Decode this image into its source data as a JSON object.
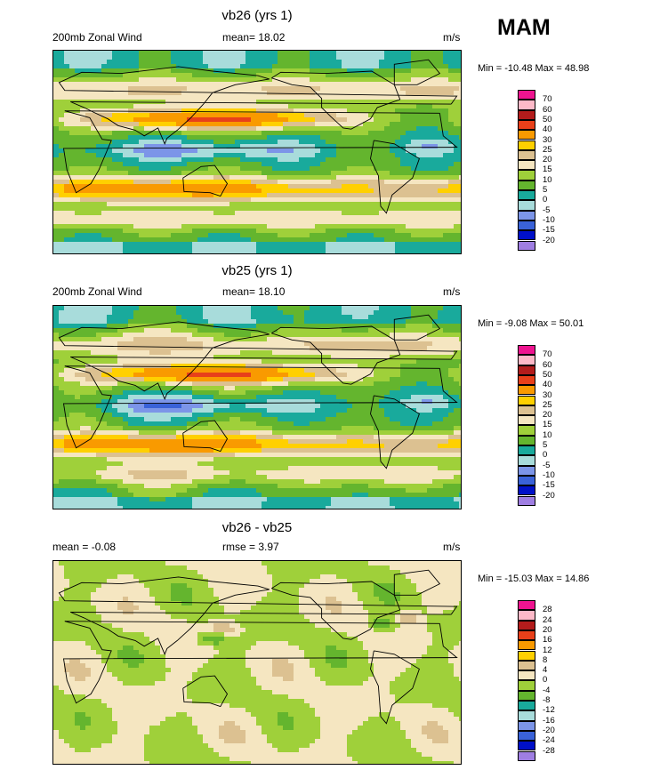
{
  "season": "MAM",
  "panels": [
    {
      "title": "vb26 (yrs 1)",
      "left_label": "200mb Zonal Wind",
      "center_label": "mean=  18.02",
      "units": "m/s",
      "minmax": "Min = -10.48 Max =  48.98",
      "colorbar": {
        "labels": [
          "70",
          "60",
          "50",
          "40",
          "30",
          "25",
          "20",
          "15",
          "10",
          "5",
          "0",
          "-5",
          "-10",
          "-15",
          "-20"
        ],
        "colors": [
          "#ee1490",
          "#fdb9c8",
          "#b31c1c",
          "#e8401a",
          "#f99a00",
          "#ffd000",
          "#dcc191",
          "#f5e6c1",
          "#9fd03a",
          "#64b52e",
          "#19aa9c",
          "#a8dcdb",
          "#7c95e8",
          "#3a62d8",
          "#0010c8",
          "#9f7ee2"
        ]
      },
      "map_fields": {
        "kind": "zonal-wind",
        "variant": 0
      }
    },
    {
      "title": "vb25 (yrs 1)",
      "left_label": "200mb Zonal Wind",
      "center_label": "mean=  18.10",
      "units": "m/s",
      "minmax": "Min = -9.08 Max =  50.01",
      "colorbar": {
        "labels": [
          "70",
          "60",
          "50",
          "40",
          "30",
          "25",
          "20",
          "15",
          "10",
          "5",
          "0",
          "-5",
          "-10",
          "-15",
          "-20"
        ],
        "colors": [
          "#ee1490",
          "#fdb9c8",
          "#b31c1c",
          "#e8401a",
          "#f99a00",
          "#ffd000",
          "#dcc191",
          "#f5e6c1",
          "#9fd03a",
          "#64b52e",
          "#19aa9c",
          "#a8dcdb",
          "#7c95e8",
          "#3a62d8",
          "#0010c8",
          "#9f7ee2"
        ]
      },
      "map_fields": {
        "kind": "zonal-wind",
        "variant": 1
      }
    },
    {
      "title": "vb26 - vb25",
      "left_label": "mean =  -0.08",
      "center_label": "rmse =   3.97",
      "units": "m/s",
      "minmax": "Min = -15.03 Max =  14.86",
      "colorbar": {
        "labels": [
          "28",
          "24",
          "20",
          "16",
          "12",
          "8",
          "4",
          "0",
          "-4",
          "-8",
          "-12",
          "-16",
          "-20",
          "-24",
          "-28"
        ],
        "colors": [
          "#ee1490",
          "#fdb9c8",
          "#b31c1c",
          "#e8401a",
          "#f99a00",
          "#ffd000",
          "#dcc191",
          "#f5e6c1",
          "#9fd03a",
          "#64b52e",
          "#19aa9c",
          "#a8dcdb",
          "#7c95e8",
          "#3a62d8",
          "#0010c8",
          "#9f7ee2"
        ]
      },
      "map_fields": {
        "kind": "difference",
        "variant": 2
      }
    }
  ]
}
